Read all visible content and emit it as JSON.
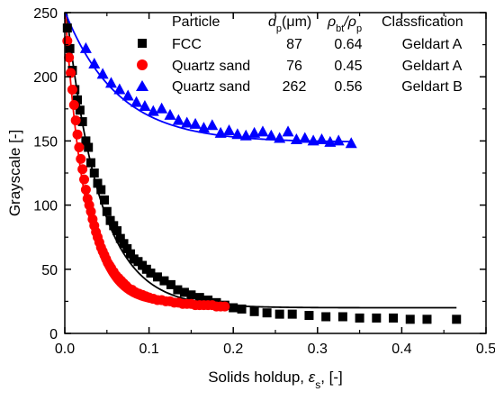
{
  "chart_data": {
    "type": "scatter",
    "xlabel": "Solids holdup, ε_s, [-]",
    "xlabel_parts": {
      "prefix": "Solids holdup, ",
      "symbol": "ε",
      "sub": "s",
      "suffix": ", [-]"
    },
    "ylabel": "Grayscale [-]",
    "xlim": [
      0,
      0.5
    ],
    "ylim": [
      0,
      250
    ],
    "xticks": [
      "0.0",
      "0.1",
      "0.2",
      "0.3",
      "0.4",
      "0.5"
    ],
    "yticks": [
      "0",
      "50",
      "100",
      "150",
      "200",
      "250"
    ],
    "grid": false,
    "legend_position": "top-right",
    "legend_header": {
      "particle": "Particle",
      "dp": "d",
      "dp_sub": "p",
      "dp_unit": "(μm)",
      "ratio": "ρ",
      "ratio_sub1": "bt",
      "ratio_mid": "/ρ",
      "ratio_sub2": "p",
      "classification": "Classfication"
    },
    "series": [
      {
        "name": "FCC",
        "marker": "square",
        "color": "#000000",
        "dp": "87",
        "ratio": "0.64",
        "classification": "Geldart A",
        "x": [
          0.003,
          0.006,
          0.009,
          0.012,
          0.015,
          0.018,
          0.021,
          0.025,
          0.028,
          0.031,
          0.035,
          0.039,
          0.043,
          0.047,
          0.05,
          0.054,
          0.058,
          0.062,
          0.066,
          0.07,
          0.074,
          0.078,
          0.082,
          0.087,
          0.092,
          0.097,
          0.102,
          0.11,
          0.118,
          0.126,
          0.134,
          0.142,
          0.15,
          0.16,
          0.17,
          0.18,
          0.19,
          0.2,
          0.21,
          0.225,
          0.24,
          0.255,
          0.27,
          0.29,
          0.31,
          0.33,
          0.35,
          0.37,
          0.39,
          0.41,
          0.43,
          0.465
        ],
        "y": [
          238,
          222,
          205,
          190,
          182,
          174,
          165,
          150,
          145,
          133,
          125,
          117,
          112,
          104,
          95,
          88,
          84,
          80,
          74,
          70,
          66,
          62,
          58,
          56,
          53,
          50,
          47,
          44,
          41,
          38,
          34,
          32,
          30,
          28,
          26,
          24,
          22,
          20,
          19,
          17,
          16,
          15,
          15,
          14,
          13,
          13,
          12,
          12,
          12,
          11,
          11,
          11
        ]
      },
      {
        "name": "Quartz sand",
        "marker": "circle",
        "color": "#ff0000",
        "dp": "76",
        "ratio": "0.45",
        "classification": "Geldart A",
        "x": [
          0.003,
          0.005,
          0.007,
          0.009,
          0.011,
          0.013,
          0.015,
          0.017,
          0.019,
          0.021,
          0.023,
          0.025,
          0.027,
          0.029,
          0.031,
          0.033,
          0.035,
          0.037,
          0.039,
          0.041,
          0.043,
          0.045,
          0.047,
          0.049,
          0.051,
          0.053,
          0.055,
          0.058,
          0.061,
          0.064,
          0.067,
          0.07,
          0.073,
          0.076,
          0.08,
          0.084,
          0.088,
          0.092,
          0.096,
          0.1,
          0.105,
          0.11,
          0.115,
          0.12,
          0.125,
          0.13,
          0.135,
          0.14,
          0.145,
          0.15,
          0.155,
          0.16,
          0.165,
          0.17,
          0.175,
          0.18,
          0.185,
          0.19
        ],
        "y": [
          228,
          215,
          203,
          190,
          178,
          166,
          155,
          145,
          136,
          128,
          120,
          112,
          105,
          100,
          95,
          89,
          84,
          79,
          75,
          71,
          67,
          64,
          61,
          58,
          55,
          53,
          51,
          48,
          45,
          43,
          41,
          39,
          37,
          35,
          34,
          32,
          31,
          30,
          29,
          28,
          27,
          26,
          26,
          25,
          25,
          24,
          24,
          23,
          23,
          23,
          22,
          22,
          22,
          22,
          22,
          21,
          21,
          21
        ]
      },
      {
        "name": "Quartz sand",
        "marker": "triangle",
        "color": "#0000ff",
        "dp": "262",
        "ratio": "0.56",
        "classification": "Geldart B",
        "x": [
          0.025,
          0.035,
          0.045,
          0.055,
          0.065,
          0.075,
          0.085,
          0.095,
          0.105,
          0.115,
          0.125,
          0.135,
          0.145,
          0.155,
          0.165,
          0.175,
          0.185,
          0.195,
          0.205,
          0.215,
          0.225,
          0.235,
          0.245,
          0.255,
          0.265,
          0.275,
          0.285,
          0.295,
          0.305,
          0.315,
          0.325,
          0.34
        ],
        "y": [
          222,
          210,
          202,
          195,
          190,
          185,
          180,
          177,
          173,
          175,
          170,
          166,
          164,
          163,
          160,
          162,
          156,
          158,
          155,
          154,
          156,
          157,
          154,
          152,
          157,
          151,
          152,
          150,
          151,
          149,
          150,
          148
        ]
      }
    ],
    "fit_lines": [
      {
        "series": "FCC",
        "color": "#000000",
        "a": 243,
        "b": 20,
        "k": 25
      },
      {
        "series": "Quartz sand 76",
        "color": "#ff0000",
        "a": 234,
        "b": 21,
        "k": 42
      },
      {
        "series": "Quartz sand 262",
        "color": "#0000ff",
        "a": 102,
        "b": 149,
        "k": 16
      }
    ]
  }
}
